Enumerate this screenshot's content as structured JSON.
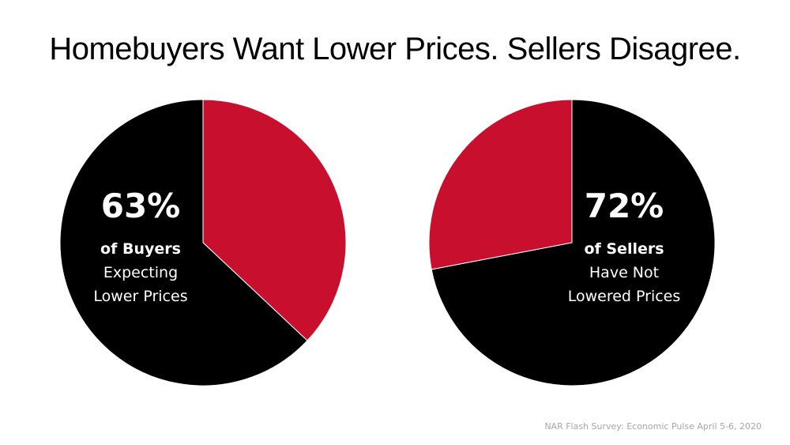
{
  "title": "Homebuyers Want Lower Prices. Sellers Disagree.",
  "source": "NAR Flash Survey: Economic Pulse April 5-6, 2020",
  "colors": {
    "primary": "#000000",
    "accent": "#c8102e",
    "background": "#ffffff",
    "source_text": "#a6a6a6"
  },
  "chart_data": [
    {
      "type": "pie",
      "highlight": {
        "percent": "63%",
        "lead": "of Buyers",
        "lines": [
          "Expecting",
          "Lower Prices"
        ]
      },
      "slices": [
        {
          "value": 63,
          "color": "#000000"
        },
        {
          "value": 37,
          "color": "#c8102e"
        }
      ]
    },
    {
      "type": "pie",
      "highlight": {
        "percent": "72%",
        "lead": "of Sellers",
        "lines": [
          "Have Not",
          "Lowered Prices"
        ]
      },
      "slices": [
        {
          "value": 72,
          "color": "#000000"
        },
        {
          "value": 28,
          "color": "#c8102e"
        }
      ]
    }
  ]
}
